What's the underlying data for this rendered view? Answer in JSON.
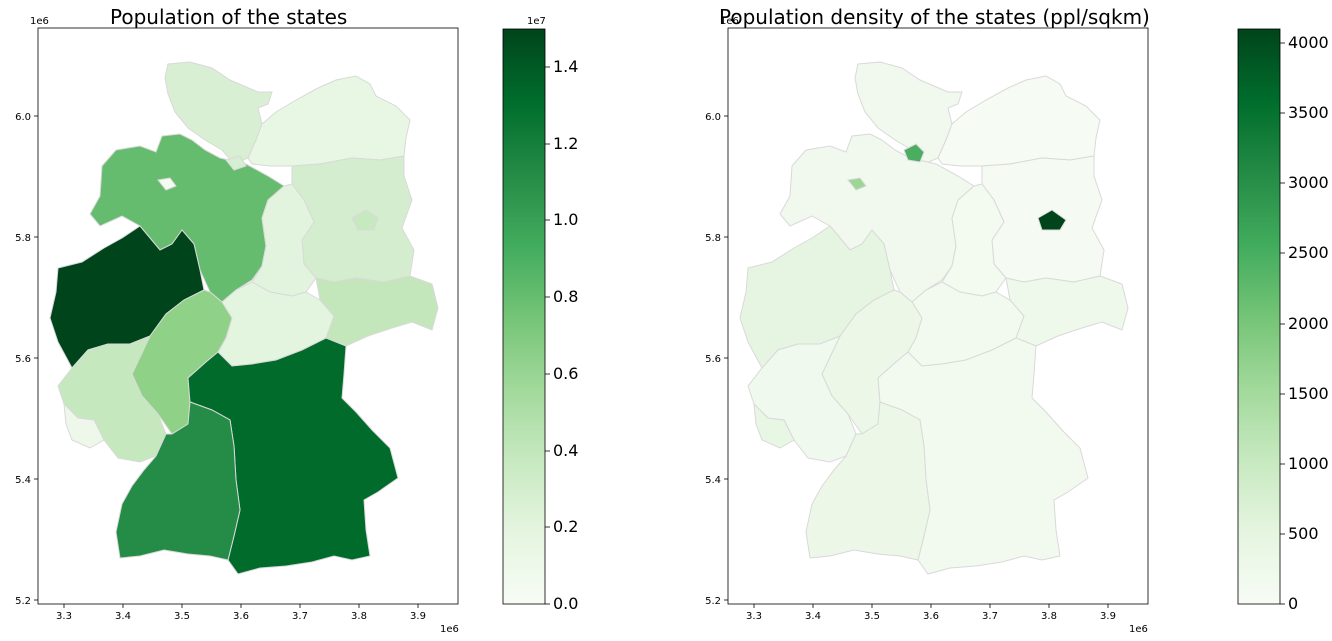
{
  "maps": [
    {
      "title": "Population of the states",
      "x_offset": "1e6",
      "y_offset": "1e6",
      "x_ticks": [
        "3.3",
        "3.4",
        "3.5",
        "3.6",
        "3.7",
        "3.8",
        "3.9"
      ],
      "y_ticks": [
        "6.0",
        "5.8",
        "5.6",
        "5.4",
        "5.2"
      ],
      "colorbar": {
        "offset": "1e7",
        "ticks": [
          "0.0",
          "0.2",
          "0.4",
          "0.6",
          "0.8",
          "1.0",
          "1.2",
          "1.4"
        ],
        "min": 0,
        "max": 1.5,
        "colormap": "Greens",
        "colors": {
          "low": "#f7fcf5",
          "mid": "#74c476",
          "high": "#00441b"
        }
      }
    },
    {
      "title": "Population density of the states (ppl/sqkm)",
      "x_offset": "1e6",
      "y_offset": "1e6",
      "x_ticks": [
        "3.3",
        "3.4",
        "3.5",
        "3.6",
        "3.7",
        "3.8",
        "3.9"
      ],
      "y_ticks": [
        "6.0",
        "5.8",
        "5.6",
        "5.4",
        "5.2"
      ],
      "colorbar": {
        "ticks": [
          "0",
          "500",
          "1000",
          "1500",
          "2000",
          "2500",
          "3000",
          "3500",
          "4000"
        ],
        "min": 0,
        "max": 4100,
        "colormap": "Greens",
        "colors": {
          "low": "#f7fcf5",
          "mid": "#74c476",
          "high": "#00441b"
        }
      }
    }
  ]
}
